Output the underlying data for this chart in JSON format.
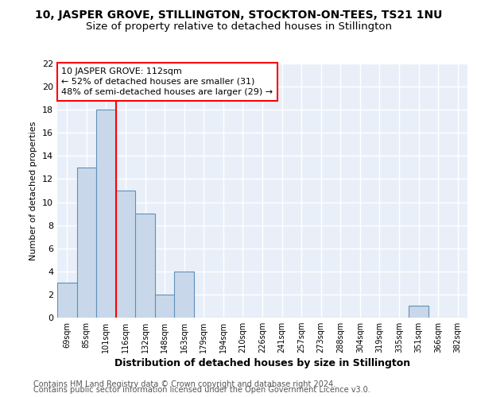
{
  "title": "10, JASPER GROVE, STILLINGTON, STOCKTON-ON-TEES, TS21 1NU",
  "subtitle": "Size of property relative to detached houses in Stillington",
  "xlabel": "Distribution of detached houses by size in Stillington",
  "ylabel": "Number of detached properties",
  "categories": [
    "69sqm",
    "85sqm",
    "101sqm",
    "116sqm",
    "132sqm",
    "148sqm",
    "163sqm",
    "179sqm",
    "194sqm",
    "210sqm",
    "226sqm",
    "241sqm",
    "257sqm",
    "273sqm",
    "288sqm",
    "304sqm",
    "319sqm",
    "335sqm",
    "351sqm",
    "366sqm",
    "382sqm"
  ],
  "values": [
    3,
    13,
    18,
    11,
    9,
    2,
    4,
    0,
    0,
    0,
    0,
    0,
    0,
    0,
    0,
    0,
    0,
    0,
    1,
    0,
    0
  ],
  "bar_color": "#c8d8ea",
  "bar_edgecolor": "#6090b8",
  "background_color": "#e8eff8",
  "grid_color": "#ffffff",
  "annotation_line1": "10 JASPER GROVE: 112sqm",
  "annotation_line2": "← 52% of detached houses are smaller (31)",
  "annotation_line3": "48% of semi-detached houses are larger (29) →",
  "annotation_box_color": "white",
  "annotation_box_edgecolor": "red",
  "vline_color": "red",
  "ylim": [
    0,
    22
  ],
  "yticks": [
    0,
    2,
    4,
    6,
    8,
    10,
    12,
    14,
    16,
    18,
    20,
    22
  ],
  "footer_line1": "Contains HM Land Registry data © Crown copyright and database right 2024.",
  "footer_line2": "Contains public sector information licensed under the Open Government Licence v3.0.",
  "title_fontsize": 10,
  "subtitle_fontsize": 9.5,
  "annotation_fontsize": 8,
  "ylabel_fontsize": 8,
  "xlabel_fontsize": 9,
  "footer_fontsize": 7
}
